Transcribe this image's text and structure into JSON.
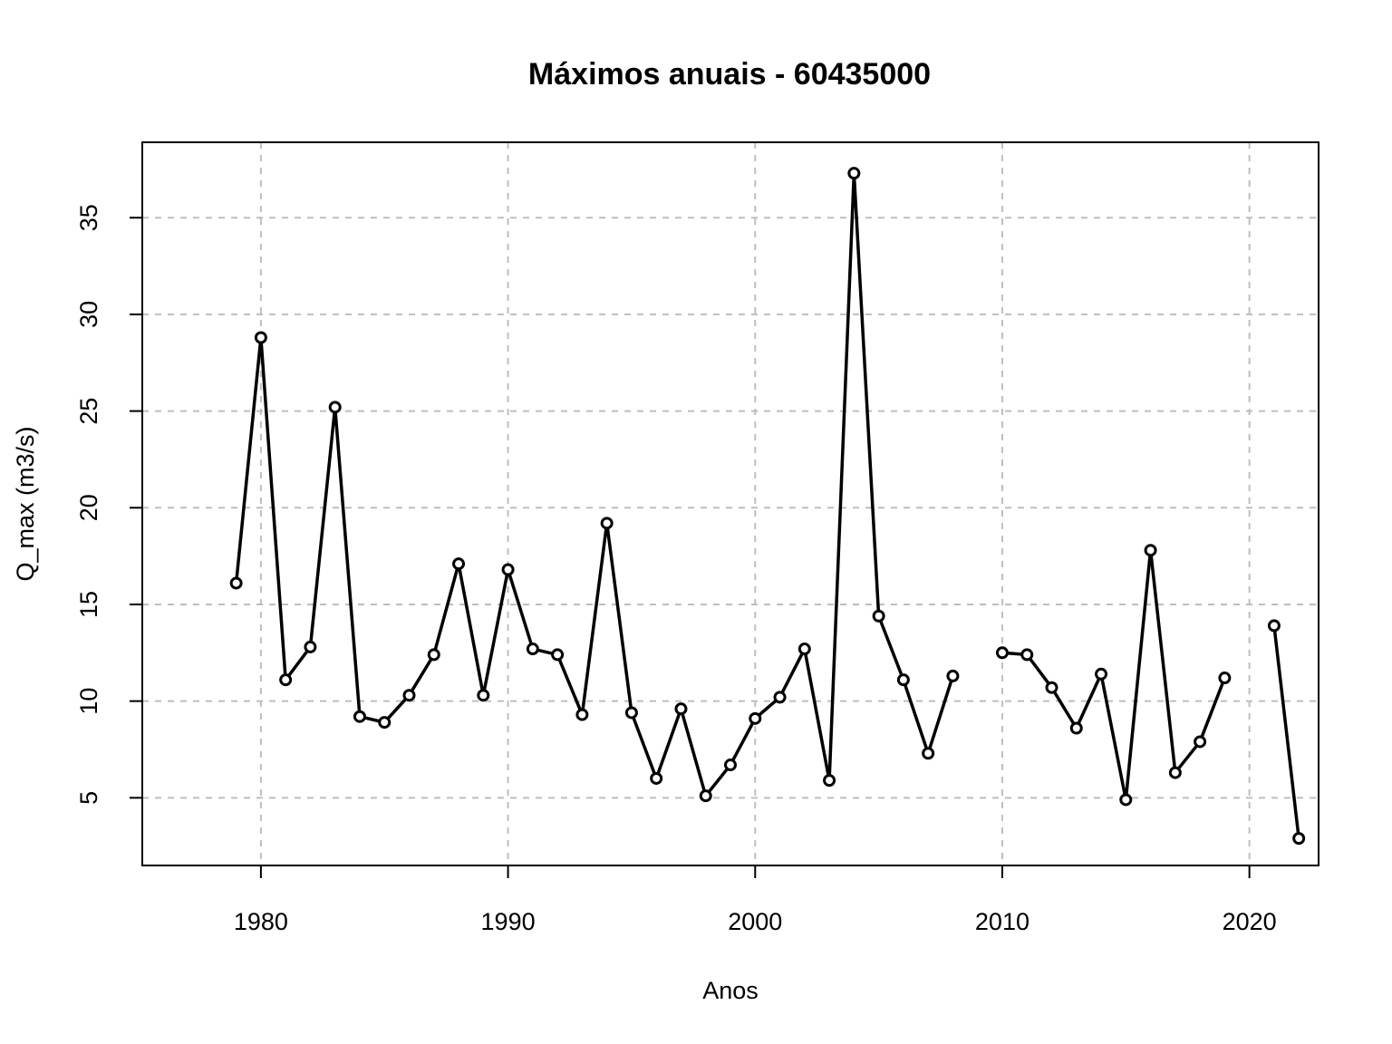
{
  "chart_data": {
    "type": "line",
    "title": "Máximos anuais - 60435000",
    "xlabel": "Anos",
    "ylabel": "Q_max (m3/s)",
    "xlim": [
      1975.2,
      2022.8
    ],
    "ylim": [
      1.5,
      38.9
    ],
    "x_ticks": [
      1980,
      1990,
      2000,
      2010,
      2020
    ],
    "y_ticks": [
      5,
      10,
      15,
      20,
      25,
      30,
      35
    ],
    "grid": true,
    "line_color": "#000000",
    "grid_color": "#bebebe",
    "series": [
      {
        "points": [
          {
            "x": 1979,
            "y": 16.1
          },
          {
            "x": 1980,
            "y": 28.8
          },
          {
            "x": 1981,
            "y": 11.1
          },
          {
            "x": 1982,
            "y": 12.8
          },
          {
            "x": 1983,
            "y": 25.2
          },
          {
            "x": 1984,
            "y": 9.2
          },
          {
            "x": 1985,
            "y": 8.9
          },
          {
            "x": 1986,
            "y": 10.3
          },
          {
            "x": 1987,
            "y": 12.4
          },
          {
            "x": 1988,
            "y": 17.1
          },
          {
            "x": 1989,
            "y": 10.3
          },
          {
            "x": 1990,
            "y": 16.8
          },
          {
            "x": 1991,
            "y": 12.7
          },
          {
            "x": 1992,
            "y": 12.4
          },
          {
            "x": 1993,
            "y": 9.3
          },
          {
            "x": 1994,
            "y": 19.2
          },
          {
            "x": 1995,
            "y": 9.4
          },
          {
            "x": 1996,
            "y": 6.0
          },
          {
            "x": 1997,
            "y": 9.6
          },
          {
            "x": 1998,
            "y": 5.1
          },
          {
            "x": 1999,
            "y": 6.7
          },
          {
            "x": 2000,
            "y": 9.1
          },
          {
            "x": 2001,
            "y": 10.2
          },
          {
            "x": 2002,
            "y": 12.7
          },
          {
            "x": 2003,
            "y": 5.9
          },
          {
            "x": 2004,
            "y": 37.3
          },
          {
            "x": 2005,
            "y": 14.4
          },
          {
            "x": 2006,
            "y": 11.1
          },
          {
            "x": 2007,
            "y": 7.3
          },
          {
            "x": 2008,
            "y": 11.3
          },
          {
            "x": 2009,
            "y": null
          },
          {
            "x": 2010,
            "y": 12.5
          },
          {
            "x": 2011,
            "y": 12.4
          },
          {
            "x": 2012,
            "y": 10.7
          },
          {
            "x": 2013,
            "y": 8.6
          },
          {
            "x": 2014,
            "y": 11.4
          },
          {
            "x": 2015,
            "y": 4.9
          },
          {
            "x": 2016,
            "y": 17.8
          },
          {
            "x": 2017,
            "y": 6.3
          },
          {
            "x": 2018,
            "y": 7.9
          },
          {
            "x": 2019,
            "y": 11.2
          },
          {
            "x": 2020,
            "y": null
          },
          {
            "x": 2021,
            "y": 13.9
          },
          {
            "x": 2022,
            "y": 2.9
          }
        ]
      }
    ]
  }
}
